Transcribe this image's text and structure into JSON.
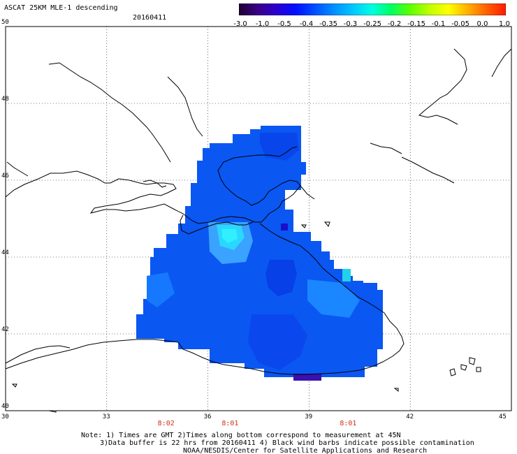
{
  "header": {
    "title": "ASCAT 25KM MLE-1 descending",
    "date": "20160411"
  },
  "colorbar": {
    "labels": [
      "-3.0",
      "-1.0",
      "-0.5",
      "-0.4",
      "-0.35",
      "-0.3",
      "-0.25",
      "-0.2",
      "-0.15",
      "-0.1",
      "-0.05",
      "0.0",
      "1.0"
    ],
    "colors": [
      "#200030",
      "#3a0088",
      "#2a00d0",
      "#0010ff",
      "#0050ff",
      "#0090ff",
      "#00c8ff",
      "#00ffe0",
      "#00ff60",
      "#60ff00",
      "#c0ff00",
      "#ffff00",
      "#ffb000",
      "#ff6000",
      "#ff1a00"
    ]
  },
  "axes": {
    "lat_labels": [
      {
        "text": "50",
        "value": 50
      },
      {
        "text": "48",
        "value": 48
      },
      {
        "text": "46",
        "value": 46
      },
      {
        "text": "44",
        "value": 44
      },
      {
        "text": "42",
        "value": 42
      },
      {
        "text": "40",
        "value": 40
      }
    ],
    "lon_labels": [
      {
        "text": "30",
        "value": 30
      },
      {
        "text": "33",
        "value": 33
      },
      {
        "text": "36",
        "value": 36
      },
      {
        "text": "39",
        "value": 39
      },
      {
        "text": "42",
        "value": 42
      },
      {
        "text": "45",
        "value": 45
      }
    ],
    "lat_range": [
      40,
      50
    ],
    "lon_range": [
      30,
      45
    ]
  },
  "times": [
    {
      "text": "8:02",
      "lon": 34.8
    },
    {
      "text": "8:01",
      "lon": 36.7
    },
    {
      "text": "8:01",
      "lon": 40.2
    }
  ],
  "notes": {
    "line1": "Note: 1) Times are GMT 2)Times along bottom correspond to measurement at 45N",
    "line2": "3)Data buffer is 22 hrs from 20160411 4) Black wind barbs indicate possible contamination",
    "line3": "NOAA/NESDIS/Center for Satellite Applications and Research"
  }
}
